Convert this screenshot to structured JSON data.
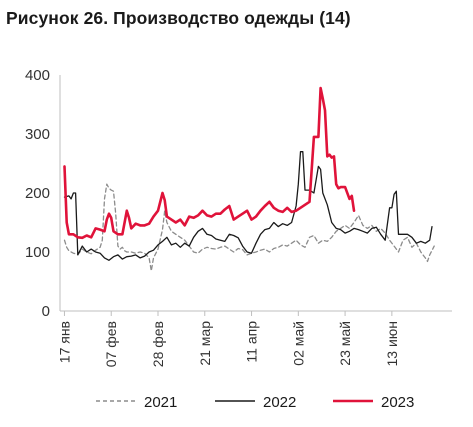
{
  "title": "Рисунок 26. Производство одежды (14)",
  "chart_data": {
    "type": "line",
    "title": "Рисунок 26. Производство одежды (14)",
    "x_unit": "days since 17 янв",
    "x_tick_labels": [
      {
        "x": 0,
        "label": "17 янв"
      },
      {
        "x": 21,
        "label": "07 фев"
      },
      {
        "x": 42,
        "label": "28 фев"
      },
      {
        "x": 63,
        "label": "21 мар"
      },
      {
        "x": 84,
        "label": "11 апр"
      },
      {
        "x": 105,
        "label": "02 май"
      },
      {
        "x": 126,
        "label": "23 май"
      },
      {
        "x": 147,
        "label": "13 июн"
      }
    ],
    "xlim": [
      -2,
      174
    ],
    "ylim": [
      0,
      400
    ],
    "y_ticks": [
      0,
      100,
      200,
      300,
      400
    ],
    "grid": false,
    "legend_position": "bottom",
    "series": [
      {
        "name": "2021",
        "color": "#8c8c8c",
        "style": "dashed",
        "points": [
          [
            0,
            120
          ],
          [
            1,
            108
          ],
          [
            2,
            102
          ],
          [
            4,
            98
          ],
          [
            6,
            96
          ],
          [
            8,
            105
          ],
          [
            10,
            100
          ],
          [
            12,
            97
          ],
          [
            14,
            103
          ],
          [
            16,
            108
          ],
          [
            17,
            120
          ],
          [
            18,
            190
          ],
          [
            19,
            215
          ],
          [
            20,
            208
          ],
          [
            21,
            205
          ],
          [
            22,
            203
          ],
          [
            23,
            165
          ],
          [
            24,
            110
          ],
          [
            25,
            105
          ],
          [
            26,
            108
          ],
          [
            27,
            102
          ],
          [
            28,
            100
          ],
          [
            30,
            100
          ],
          [
            32,
            98
          ],
          [
            34,
            100
          ],
          [
            36,
            98
          ],
          [
            38,
            90
          ],
          [
            39,
            68
          ],
          [
            40,
            90
          ],
          [
            42,
            105
          ],
          [
            44,
            138
          ],
          [
            45,
            170
          ],
          [
            46,
            150
          ],
          [
            48,
            135
          ],
          [
            50,
            130
          ],
          [
            52,
            125
          ],
          [
            54,
            120
          ],
          [
            56,
            110
          ],
          [
            58,
            100
          ],
          [
            60,
            98
          ],
          [
            62,
            105
          ],
          [
            64,
            108
          ],
          [
            66,
            106
          ],
          [
            68,
            105
          ],
          [
            70,
            108
          ],
          [
            72,
            110
          ],
          [
            74,
            105
          ],
          [
            76,
            100
          ],
          [
            78,
            106
          ],
          [
            80,
            104
          ],
          [
            82,
            95
          ],
          [
            84,
            98
          ],
          [
            86,
            100
          ],
          [
            88,
            103
          ],
          [
            90,
            105
          ],
          [
            92,
            100
          ],
          [
            94,
            106
          ],
          [
            96,
            108
          ],
          [
            98,
            112
          ],
          [
            100,
            110
          ],
          [
            102,
            115
          ],
          [
            104,
            120
          ],
          [
            106,
            112
          ],
          [
            108,
            108
          ],
          [
            110,
            125
          ],
          [
            112,
            128
          ],
          [
            114,
            115
          ],
          [
            116,
            120
          ],
          [
            118,
            118
          ],
          [
            120,
            125
          ],
          [
            122,
            135
          ],
          [
            124,
            140
          ],
          [
            126,
            145
          ],
          [
            128,
            140
          ],
          [
            130,
            150
          ],
          [
            132,
            162
          ],
          [
            134,
            145
          ],
          [
            136,
            140
          ],
          [
            138,
            145
          ],
          [
            140,
            135
          ],
          [
            142,
            140
          ],
          [
            144,
            132
          ],
          [
            146,
            120
          ],
          [
            148,
            110
          ],
          [
            150,
            100
          ],
          [
            152,
            120
          ],
          [
            154,
            125
          ],
          [
            156,
            108
          ],
          [
            158,
            115
          ],
          [
            160,
            100
          ],
          [
            162,
            90
          ],
          [
            163,
            84
          ],
          [
            164,
            95
          ],
          [
            166,
            110
          ]
        ]
      },
      {
        "name": "2022",
        "color": "#1a1a1a",
        "style": "solid",
        "points": [
          [
            0,
            193
          ],
          [
            2,
            195
          ],
          [
            3,
            190
          ],
          [
            4,
            200
          ],
          [
            5,
            200
          ],
          [
            6,
            95
          ],
          [
            8,
            110
          ],
          [
            10,
            100
          ],
          [
            12,
            105
          ],
          [
            14,
            100
          ],
          [
            16,
            98
          ],
          [
            18,
            90
          ],
          [
            20,
            86
          ],
          [
            22,
            92
          ],
          [
            24,
            95
          ],
          [
            26,
            88
          ],
          [
            28,
            92
          ],
          [
            30,
            93
          ],
          [
            32,
            95
          ],
          [
            34,
            90
          ],
          [
            36,
            93
          ],
          [
            38,
            100
          ],
          [
            40,
            103
          ],
          [
            42,
            112
          ],
          [
            44,
            118
          ],
          [
            46,
            125
          ],
          [
            48,
            112
          ],
          [
            50,
            115
          ],
          [
            52,
            108
          ],
          [
            54,
            115
          ],
          [
            56,
            110
          ],
          [
            58,
            125
          ],
          [
            60,
            135
          ],
          [
            62,
            140
          ],
          [
            64,
            130
          ],
          [
            66,
            128
          ],
          [
            68,
            122
          ],
          [
            70,
            120
          ],
          [
            72,
            118
          ],
          [
            74,
            130
          ],
          [
            76,
            128
          ],
          [
            78,
            124
          ],
          [
            80,
            110
          ],
          [
            82,
            100
          ],
          [
            84,
            98
          ],
          [
            86,
            115
          ],
          [
            88,
            130
          ],
          [
            90,
            138
          ],
          [
            92,
            140
          ],
          [
            94,
            150
          ],
          [
            96,
            143
          ],
          [
            98,
            148
          ],
          [
            100,
            145
          ],
          [
            102,
            150
          ],
          [
            104,
            178
          ],
          [
            105,
            215
          ],
          [
            106,
            270
          ],
          [
            107,
            270
          ],
          [
            108,
            205
          ],
          [
            110,
            205
          ],
          [
            112,
            200
          ],
          [
            114,
            245
          ],
          [
            115,
            240
          ],
          [
            116,
            200
          ],
          [
            118,
            180
          ],
          [
            120,
            150
          ],
          [
            122,
            140
          ],
          [
            124,
            138
          ],
          [
            126,
            132
          ],
          [
            128,
            135
          ],
          [
            130,
            140
          ],
          [
            132,
            138
          ],
          [
            134,
            135
          ],
          [
            136,
            132
          ],
          [
            138,
            140
          ],
          [
            140,
            142
          ],
          [
            142,
            130
          ],
          [
            144,
            120
          ],
          [
            146,
            175
          ],
          [
            147,
            175
          ],
          [
            148,
            198
          ],
          [
            149,
            203
          ],
          [
            150,
            130
          ],
          [
            152,
            130
          ],
          [
            154,
            130
          ],
          [
            156,
            125
          ],
          [
            158,
            115
          ],
          [
            160,
            118
          ],
          [
            162,
            115
          ],
          [
            164,
            120
          ],
          [
            165,
            143
          ]
        ]
      },
      {
        "name": "2023",
        "color": "#e0133a",
        "style": "solid",
        "points": [
          [
            0,
            245
          ],
          [
            1,
            150
          ],
          [
            2,
            130
          ],
          [
            4,
            130
          ],
          [
            6,
            125
          ],
          [
            8,
            124
          ],
          [
            10,
            128
          ],
          [
            12,
            125
          ],
          [
            14,
            140
          ],
          [
            16,
            138
          ],
          [
            18,
            135
          ],
          [
            19,
            155
          ],
          [
            20,
            165
          ],
          [
            21,
            158
          ],
          [
            22,
            135
          ],
          [
            24,
            130
          ],
          [
            26,
            130
          ],
          [
            28,
            170
          ],
          [
            29,
            158
          ],
          [
            30,
            140
          ],
          [
            32,
            148
          ],
          [
            34,
            145
          ],
          [
            36,
            145
          ],
          [
            38,
            148
          ],
          [
            40,
            160
          ],
          [
            42,
            170
          ],
          [
            44,
            200
          ],
          [
            45,
            188
          ],
          [
            46,
            160
          ],
          [
            48,
            155
          ],
          [
            50,
            150
          ],
          [
            52,
            155
          ],
          [
            54,
            145
          ],
          [
            56,
            160
          ],
          [
            58,
            158
          ],
          [
            60,
            162
          ],
          [
            62,
            170
          ],
          [
            64,
            162
          ],
          [
            66,
            160
          ],
          [
            68,
            165
          ],
          [
            70,
            165
          ],
          [
            72,
            172
          ],
          [
            74,
            178
          ],
          [
            76,
            155
          ],
          [
            78,
            160
          ],
          [
            80,
            165
          ],
          [
            82,
            170
          ],
          [
            84,
            155
          ],
          [
            86,
            160
          ],
          [
            88,
            170
          ],
          [
            90,
            178
          ],
          [
            92,
            185
          ],
          [
            94,
            175
          ],
          [
            96,
            170
          ],
          [
            98,
            168
          ],
          [
            100,
            175
          ],
          [
            102,
            168
          ],
          [
            104,
            170
          ],
          [
            106,
            175
          ],
          [
            108,
            180
          ],
          [
            110,
            185
          ],
          [
            111,
            240
          ],
          [
            112,
            295
          ],
          [
            113,
            295
          ],
          [
            114,
            295
          ],
          [
            115,
            378
          ],
          [
            116,
            360
          ],
          [
            117,
            340
          ],
          [
            118,
            262
          ],
          [
            119,
            265
          ],
          [
            120,
            260
          ],
          [
            121,
            262
          ],
          [
            122,
            215
          ],
          [
            123,
            208
          ],
          [
            124,
            210
          ],
          [
            126,
            210
          ],
          [
            128,
            190
          ],
          [
            129,
            195
          ],
          [
            130,
            170
          ]
        ]
      }
    ]
  }
}
